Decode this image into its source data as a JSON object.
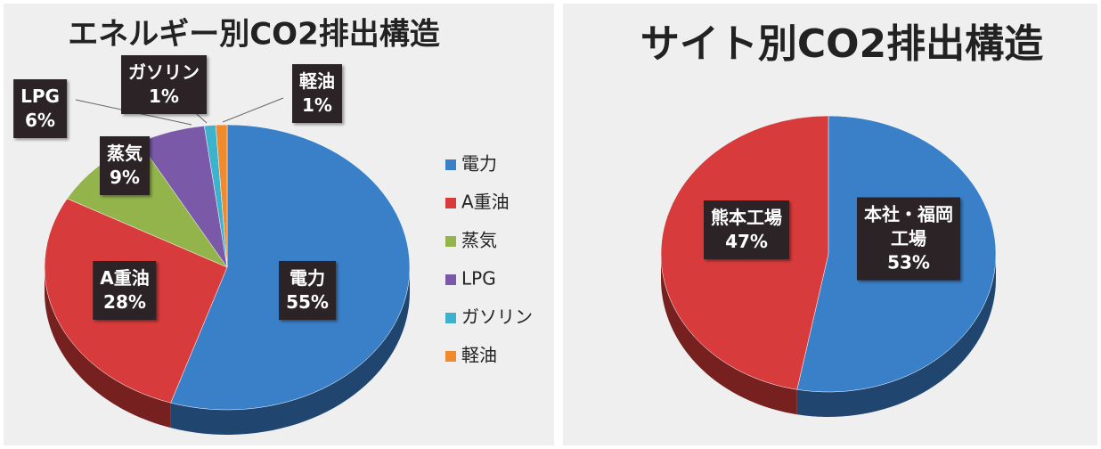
{
  "chart_data": [
    {
      "type": "pie",
      "title": "エネルギー別CO2排出構造",
      "categories": [
        "電力",
        "A重油",
        "蒸気",
        "LPG",
        "ガソリン",
        "軽油"
      ],
      "values": [
        55,
        28,
        9,
        6,
        1,
        1
      ],
      "value_labels": [
        "55%",
        "28%",
        "9%",
        "6%",
        "1%",
        "1%"
      ],
      "colors": [
        "#3a80c9",
        "#d83b3b",
        "#93b44b",
        "#7a5aa8",
        "#3db2cd",
        "#f08a2c"
      ],
      "legend": "right"
    },
    {
      "type": "pie",
      "title": "サイト別CO2排出構造",
      "categories": [
        "本社・福岡工場",
        "熊本工場"
      ],
      "values": [
        53,
        47
      ],
      "value_labels": [
        "53%",
        "47%"
      ],
      "colors": [
        "#3a80c9",
        "#d83b3b"
      ]
    }
  ]
}
